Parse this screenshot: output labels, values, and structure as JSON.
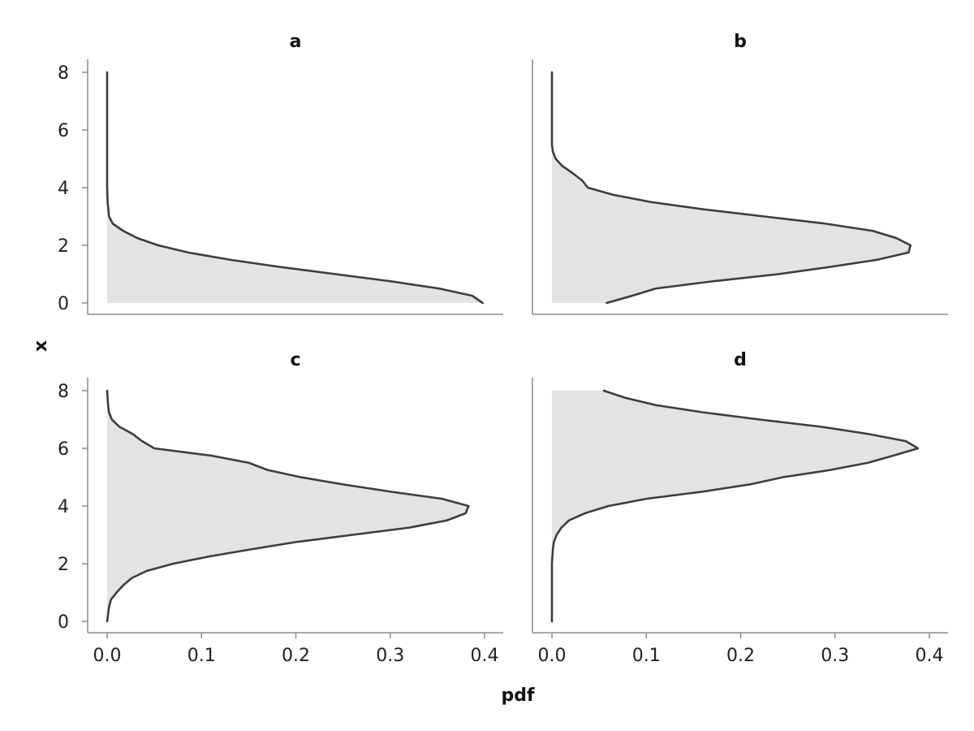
{
  "chart_data": [
    {
      "panel": "a",
      "type": "area",
      "title": "a",
      "orientation": "horizontal-density",
      "xlabel": "pdf",
      "ylabel": "x",
      "xlim": [
        0,
        0.4
      ],
      "ylim": [
        0,
        8
      ],
      "xticks": [
        "0.0",
        "0.1",
        "0.2",
        "0.3",
        "0.4"
      ],
      "yticks": [
        "0",
        "2",
        "4",
        "6",
        "8"
      ],
      "show_xticks": false,
      "show_yticks": true,
      "grid": false,
      "fill_color": "#e3e3e3",
      "line_color": "#3d3d3d",
      "points": [
        {
          "x": 0.0,
          "pdf": 0.398
        },
        {
          "x": 0.25,
          "pdf": 0.387
        },
        {
          "x": 0.5,
          "pdf": 0.352
        },
        {
          "x": 0.75,
          "pdf": 0.301
        },
        {
          "x": 1.0,
          "pdf": 0.242
        },
        {
          "x": 1.25,
          "pdf": 0.183
        },
        {
          "x": 1.5,
          "pdf": 0.13
        },
        {
          "x": 1.75,
          "pdf": 0.086
        },
        {
          "x": 2.0,
          "pdf": 0.054
        },
        {
          "x": 2.25,
          "pdf": 0.032
        },
        {
          "x": 2.5,
          "pdf": 0.017
        },
        {
          "x": 2.75,
          "pdf": 0.006
        },
        {
          "x": 3.0,
          "pdf": 0.002
        },
        {
          "x": 3.5,
          "pdf": 0.0005
        },
        {
          "x": 4.0,
          "pdf": 0.0
        },
        {
          "x": 6.0,
          "pdf": 0.0
        },
        {
          "x": 8.0,
          "pdf": 0.0
        }
      ]
    },
    {
      "panel": "b",
      "type": "area",
      "title": "b",
      "orientation": "horizontal-density",
      "xlabel": "pdf",
      "ylabel": "x",
      "xlim": [
        0,
        0.4
      ],
      "ylim": [
        0,
        8
      ],
      "xticks": [
        "0.0",
        "0.1",
        "0.2",
        "0.3",
        "0.4"
      ],
      "yticks": [
        "0",
        "2",
        "4",
        "6",
        "8"
      ],
      "show_xticks": false,
      "show_yticks": false,
      "grid": false,
      "fill_color": "#e3e3e3",
      "line_color": "#3d3d3d",
      "points": [
        {
          "x": 0.0,
          "pdf": 0.058
        },
        {
          "x": 0.25,
          "pdf": 0.085
        },
        {
          "x": 0.5,
          "pdf": 0.11
        },
        {
          "x": 0.75,
          "pdf": 0.17
        },
        {
          "x": 1.0,
          "pdf": 0.24
        },
        {
          "x": 1.25,
          "pdf": 0.295
        },
        {
          "x": 1.5,
          "pdf": 0.345
        },
        {
          "x": 1.75,
          "pdf": 0.378
        },
        {
          "x": 2.0,
          "pdf": 0.38
        },
        {
          "x": 2.25,
          "pdf": 0.365
        },
        {
          "x": 2.5,
          "pdf": 0.34
        },
        {
          "x": 2.75,
          "pdf": 0.29
        },
        {
          "x": 3.0,
          "pdf": 0.225
        },
        {
          "x": 3.25,
          "pdf": 0.16
        },
        {
          "x": 3.5,
          "pdf": 0.105
        },
        {
          "x": 3.75,
          "pdf": 0.065
        },
        {
          "x": 4.0,
          "pdf": 0.038
        },
        {
          "x": 4.25,
          "pdf": 0.032
        },
        {
          "x": 4.5,
          "pdf": 0.022
        },
        {
          "x": 4.75,
          "pdf": 0.011
        },
        {
          "x": 5.0,
          "pdf": 0.004
        },
        {
          "x": 5.25,
          "pdf": 0.001
        },
        {
          "x": 5.5,
          "pdf": 0.0
        },
        {
          "x": 8.0,
          "pdf": 0.0
        }
      ]
    },
    {
      "panel": "c",
      "type": "area",
      "title": "c",
      "orientation": "horizontal-density",
      "xlabel": "pdf",
      "ylabel": "x",
      "xlim": [
        0,
        0.4
      ],
      "ylim": [
        0,
        8
      ],
      "xticks": [
        "0.0",
        "0.1",
        "0.2",
        "0.3",
        "0.4"
      ],
      "yticks": [
        "0",
        "2",
        "4",
        "6",
        "8"
      ],
      "show_xticks": true,
      "show_yticks": true,
      "grid": false,
      "fill_color": "#e3e3e3",
      "line_color": "#3d3d3d",
      "points": [
        {
          "x": 0.0,
          "pdf": 0.0
        },
        {
          "x": 0.25,
          "pdf": 0.001
        },
        {
          "x": 0.5,
          "pdf": 0.002
        },
        {
          "x": 0.75,
          "pdf": 0.004
        },
        {
          "x": 1.0,
          "pdf": 0.01
        },
        {
          "x": 1.25,
          "pdf": 0.017
        },
        {
          "x": 1.5,
          "pdf": 0.026
        },
        {
          "x": 1.75,
          "pdf": 0.042
        },
        {
          "x": 2.0,
          "pdf": 0.07
        },
        {
          "x": 2.25,
          "pdf": 0.108
        },
        {
          "x": 2.5,
          "pdf": 0.153
        },
        {
          "x": 2.75,
          "pdf": 0.2
        },
        {
          "x": 3.0,
          "pdf": 0.26
        },
        {
          "x": 3.25,
          "pdf": 0.32
        },
        {
          "x": 3.5,
          "pdf": 0.36
        },
        {
          "x": 3.75,
          "pdf": 0.38
        },
        {
          "x": 4.0,
          "pdf": 0.383
        },
        {
          "x": 4.25,
          "pdf": 0.355
        },
        {
          "x": 4.5,
          "pdf": 0.3
        },
        {
          "x": 4.75,
          "pdf": 0.25
        },
        {
          "x": 5.0,
          "pdf": 0.205
        },
        {
          "x": 5.25,
          "pdf": 0.17
        },
        {
          "x": 5.5,
          "pdf": 0.15
        },
        {
          "x": 5.75,
          "pdf": 0.11
        },
        {
          "x": 6.0,
          "pdf": 0.05
        },
        {
          "x": 6.25,
          "pdf": 0.037
        },
        {
          "x": 6.5,
          "pdf": 0.027
        },
        {
          "x": 6.75,
          "pdf": 0.013
        },
        {
          "x": 7.0,
          "pdf": 0.005
        },
        {
          "x": 7.25,
          "pdf": 0.002
        },
        {
          "x": 7.5,
          "pdf": 0.001
        },
        {
          "x": 8.0,
          "pdf": 0.0
        }
      ]
    },
    {
      "panel": "d",
      "type": "area",
      "title": "d",
      "orientation": "horizontal-density",
      "xlabel": "pdf",
      "ylabel": "x",
      "xlim": [
        0,
        0.4
      ],
      "ylim": [
        0,
        8
      ],
      "xticks": [
        "0.0",
        "0.1",
        "0.2",
        "0.3",
        "0.4"
      ],
      "yticks": [
        "0",
        "2",
        "4",
        "6",
        "8"
      ],
      "show_xticks": true,
      "show_yticks": false,
      "grid": false,
      "fill_color": "#e3e3e3",
      "line_color": "#3d3d3d",
      "points": [
        {
          "x": 0.0,
          "pdf": 0.0
        },
        {
          "x": 2.0,
          "pdf": 0.0
        },
        {
          "x": 2.5,
          "pdf": 0.001
        },
        {
          "x": 2.75,
          "pdf": 0.002
        },
        {
          "x": 3.0,
          "pdf": 0.005
        },
        {
          "x": 3.25,
          "pdf": 0.01
        },
        {
          "x": 3.5,
          "pdf": 0.018
        },
        {
          "x": 3.75,
          "pdf": 0.035
        },
        {
          "x": 4.0,
          "pdf": 0.06
        },
        {
          "x": 4.25,
          "pdf": 0.1
        },
        {
          "x": 4.5,
          "pdf": 0.16
        },
        {
          "x": 4.75,
          "pdf": 0.21
        },
        {
          "x": 5.0,
          "pdf": 0.245
        },
        {
          "x": 5.25,
          "pdf": 0.295
        },
        {
          "x": 5.5,
          "pdf": 0.335
        },
        {
          "x": 5.75,
          "pdf": 0.362
        },
        {
          "x": 6.0,
          "pdf": 0.388
        },
        {
          "x": 6.25,
          "pdf": 0.375
        },
        {
          "x": 6.5,
          "pdf": 0.335
        },
        {
          "x": 6.75,
          "pdf": 0.285
        },
        {
          "x": 7.0,
          "pdf": 0.22
        },
        {
          "x": 7.25,
          "pdf": 0.16
        },
        {
          "x": 7.5,
          "pdf": 0.11
        },
        {
          "x": 7.75,
          "pdf": 0.078
        },
        {
          "x": 8.0,
          "pdf": 0.055
        }
      ]
    }
  ],
  "shared": {
    "xlabel": "pdf",
    "ylabel": "x"
  }
}
